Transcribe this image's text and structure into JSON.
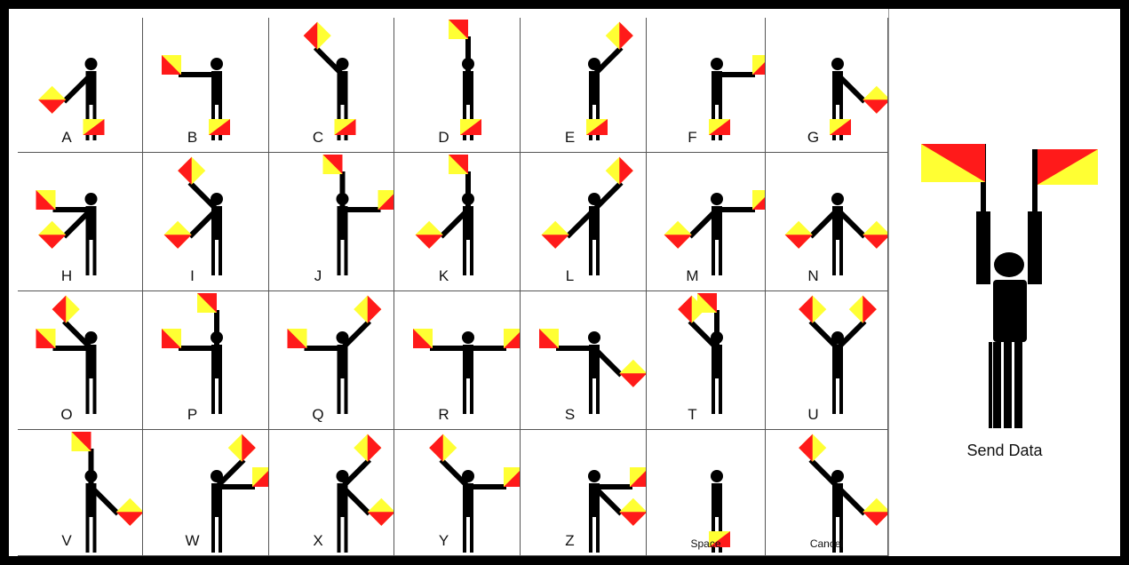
{
  "colors": {
    "flag_red": "#ff1a1a",
    "flag_yellow": "#ffff33",
    "figure": "#000000",
    "border": "#000000"
  },
  "send_button": {
    "label": "Send Data",
    "icon": "semaphore-both-flags-up-icon"
  },
  "cells": [
    {
      "id": "A",
      "label": "A",
      "arms": [
        5,
        7
      ]
    },
    {
      "id": "B",
      "label": "B",
      "arms": [
        6,
        7
      ]
    },
    {
      "id": "C",
      "label": "C",
      "arms": [
        8,
        7
      ]
    },
    {
      "id": "D",
      "label": "D",
      "arms": [
        1,
        7
      ]
    },
    {
      "id": "E",
      "label": "E",
      "arms": [
        2,
        7
      ]
    },
    {
      "id": "F",
      "label": "F",
      "arms": [
        3,
        7
      ]
    },
    {
      "id": "G",
      "label": "G",
      "arms": [
        4,
        7
      ]
    },
    {
      "id": "H",
      "label": "H",
      "arms": [
        6,
        5
      ]
    },
    {
      "id": "I",
      "label": "I",
      "arms": [
        8,
        5
      ]
    },
    {
      "id": "J",
      "label": "J",
      "arms": [
        1,
        3
      ]
    },
    {
      "id": "K",
      "label": "K",
      "arms": [
        5,
        1
      ]
    },
    {
      "id": "L",
      "label": "L",
      "arms": [
        5,
        2
      ]
    },
    {
      "id": "M",
      "label": "M",
      "arms": [
        5,
        3
      ]
    },
    {
      "id": "N",
      "label": "N",
      "arms": [
        5,
        4
      ]
    },
    {
      "id": "O",
      "label": "O",
      "arms": [
        6,
        8
      ]
    },
    {
      "id": "P",
      "label": "P",
      "arms": [
        6,
        1
      ]
    },
    {
      "id": "Q",
      "label": "Q",
      "arms": [
        6,
        2
      ]
    },
    {
      "id": "R",
      "label": "R",
      "arms": [
        6,
        3
      ]
    },
    {
      "id": "S",
      "label": "S",
      "arms": [
        6,
        4
      ]
    },
    {
      "id": "T",
      "label": "T",
      "arms": [
        8,
        1
      ]
    },
    {
      "id": "U",
      "label": "U",
      "arms": [
        8,
        2
      ]
    },
    {
      "id": "V",
      "label": "V",
      "arms": [
        1,
        4
      ]
    },
    {
      "id": "W",
      "label": "W",
      "arms": [
        2,
        3
      ]
    },
    {
      "id": "X",
      "label": "X",
      "arms": [
        2,
        4
      ]
    },
    {
      "id": "Y",
      "label": "Y",
      "arms": [
        8,
        3
      ]
    },
    {
      "id": "Z",
      "label": "Z",
      "arms": [
        3,
        4
      ]
    },
    {
      "id": "Space",
      "label": "Space",
      "arms": [
        7,
        7
      ]
    },
    {
      "id": "Cancel",
      "label": "Cancel",
      "arms": [
        8,
        4
      ]
    }
  ]
}
